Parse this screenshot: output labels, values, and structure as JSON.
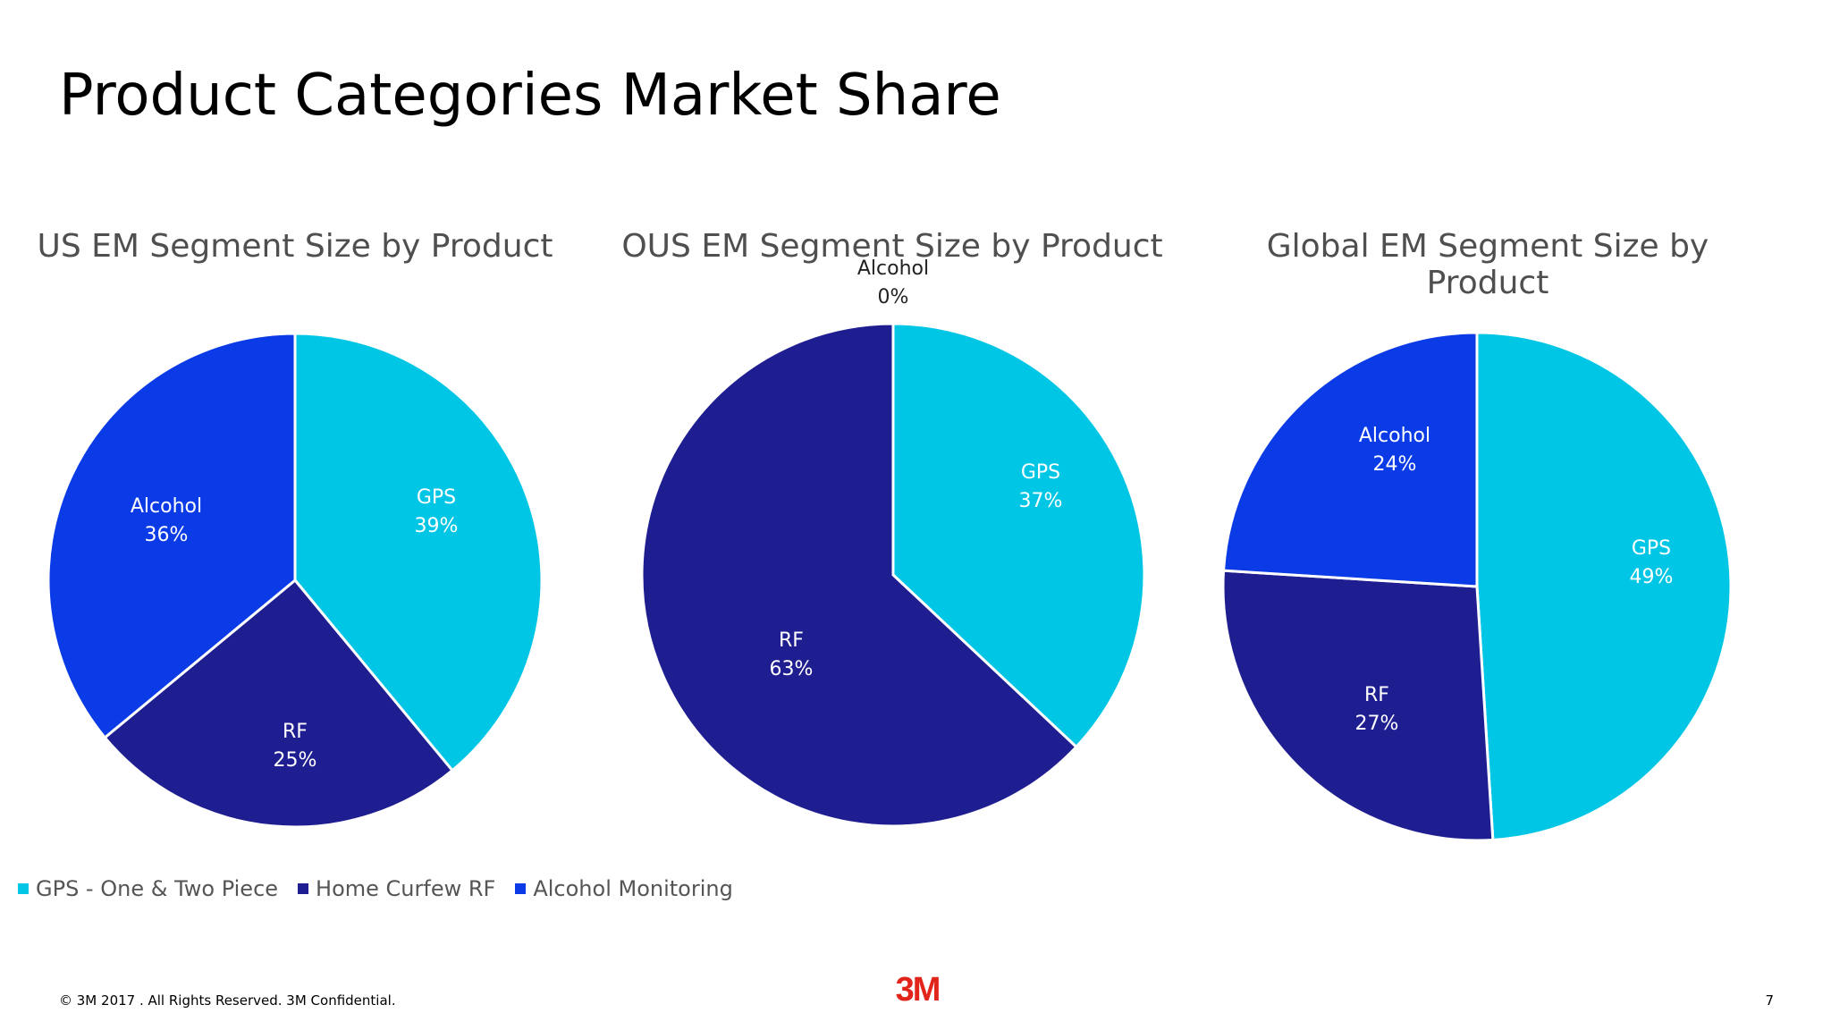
{
  "slide": {
    "title": "Product Categories Market Share",
    "footer": "© 3M   2017    . All Rights Reserved.   3M Confidential.",
    "page_number": "7",
    "logo_text": "3M"
  },
  "legend": [
    {
      "label": "GPS - One & Two Piece",
      "color": "#00C6E6"
    },
    {
      "label": "Home Curfew RF",
      "color": "#1F1E91"
    },
    {
      "label": "Alcohol Monitoring",
      "color": "#0A3BE6"
    }
  ],
  "chart_data": [
    {
      "type": "pie",
      "title": "US EM Segment Size by Product",
      "slices": [
        {
          "name": "GPS",
          "value": 39,
          "label": "39%",
          "color": "#00C6E6"
        },
        {
          "name": "RF",
          "value": 25,
          "label": "25%",
          "color": "#1F1E91"
        },
        {
          "name": "Alcohol",
          "value": 36,
          "label": "36%",
          "color": "#0A3BE6"
        }
      ]
    },
    {
      "type": "pie",
      "title": "OUS EM Segment Size by Product",
      "slices": [
        {
          "name": "GPS",
          "value": 37,
          "label": "37%",
          "color": "#00C6E6"
        },
        {
          "name": "RF",
          "value": 63,
          "label": "63%",
          "color": "#1F1E91"
        },
        {
          "name": "Alcohol",
          "value": 0,
          "label": "0%",
          "color": "#0A3BE6"
        }
      ]
    },
    {
      "type": "pie",
      "title": "Global EM Segment Size by Product",
      "slices": [
        {
          "name": "GPS",
          "value": 49,
          "label": "49%",
          "color": "#00C6E6"
        },
        {
          "name": "RF",
          "value": 27,
          "label": "27%",
          "color": "#1F1E91"
        },
        {
          "name": "Alcohol",
          "value": 24,
          "label": "24%",
          "color": "#0A3BE6"
        }
      ]
    }
  ]
}
